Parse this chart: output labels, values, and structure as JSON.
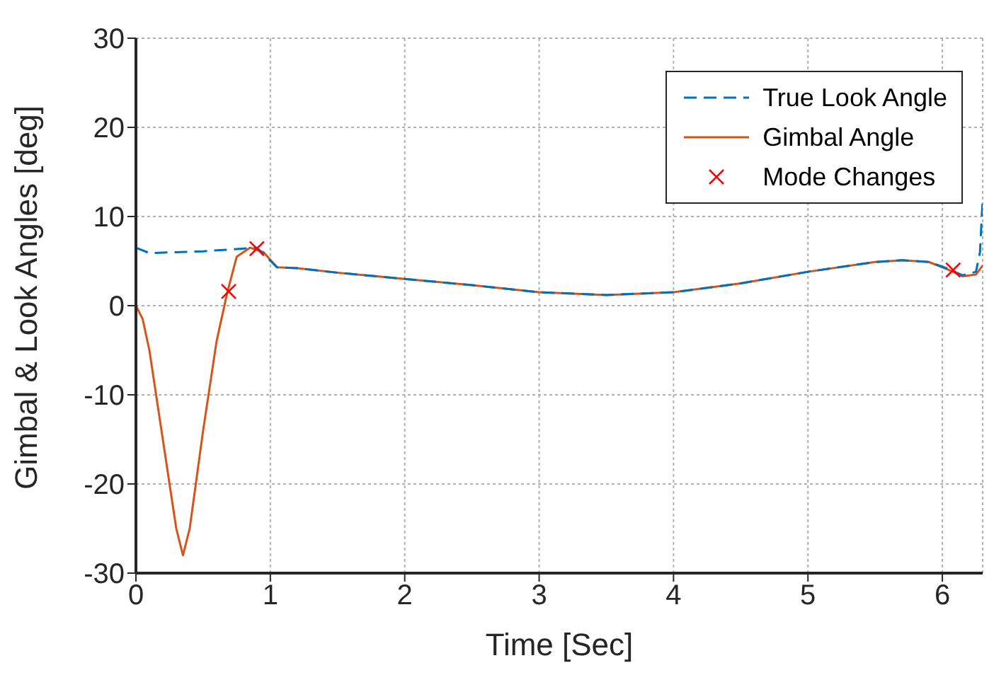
{
  "chart_data": {
    "type": "line",
    "xlabel": "Time [Sec]",
    "ylabel": "Gimbal & Look Angles [deg]",
    "xlim": [
      0,
      6.3
    ],
    "xticks": [
      0,
      1,
      2,
      3,
      4,
      5,
      6
    ],
    "ylim": [
      -30,
      30
    ],
    "yticks": [
      -30,
      -20,
      -10,
      0,
      10,
      20,
      30
    ],
    "grid": true,
    "legend": "top right",
    "series": [
      {
        "name": "True Look Angle",
        "color": "#0072bd",
        "line_style": "dashed",
        "marker": "none",
        "x": [
          0,
          0.1,
          0.3,
          0.5,
          0.7,
          0.9,
          0.97,
          1.05,
          1.2,
          1.5,
          2,
          2.5,
          3,
          3.5,
          4,
          4.5,
          5,
          5.5,
          5.7,
          5.9,
          6.05,
          6.15,
          6.25,
          6.28,
          6.3
        ],
        "values": [
          6.5,
          5.9,
          6,
          6.1,
          6.3,
          6.5,
          5.5,
          4.3,
          4.2,
          3.7,
          3,
          2.3,
          1.5,
          1.2,
          1.5,
          2.5,
          3.8,
          4.9,
          5.1,
          4.9,
          4.1,
          3.4,
          3.8,
          6,
          12
        ]
      },
      {
        "name": "Gimbal Angle",
        "color": "#d95319",
        "line_style": "solid",
        "marker": "none",
        "x": [
          0,
          0.05,
          0.1,
          0.2,
          0.3,
          0.35,
          0.4,
          0.5,
          0.6,
          0.68,
          0.75,
          0.85,
          0.95,
          1.05,
          1.2,
          1.5,
          2,
          2.5,
          3,
          3.5,
          4,
          4.5,
          5,
          5.5,
          5.7,
          5.9,
          6.05,
          6.15,
          6.25,
          6.3
        ],
        "values": [
          0,
          -1.5,
          -5,
          -15,
          -25,
          -28,
          -25,
          -14,
          -4,
          1.5,
          5.5,
          6.5,
          6,
          4.3,
          4.2,
          3.7,
          3,
          2.3,
          1.5,
          1.2,
          1.5,
          2.5,
          3.8,
          4.9,
          5.1,
          4.9,
          4,
          3.3,
          3.5,
          4.5
        ]
      },
      {
        "name": "Mode Changes",
        "type": "scatter",
        "color": "#ff0000",
        "marker": "cross",
        "x": [
          0.69,
          0.9,
          6.08
        ],
        "values": [
          1.6,
          6.4,
          4
        ]
      }
    ]
  }
}
